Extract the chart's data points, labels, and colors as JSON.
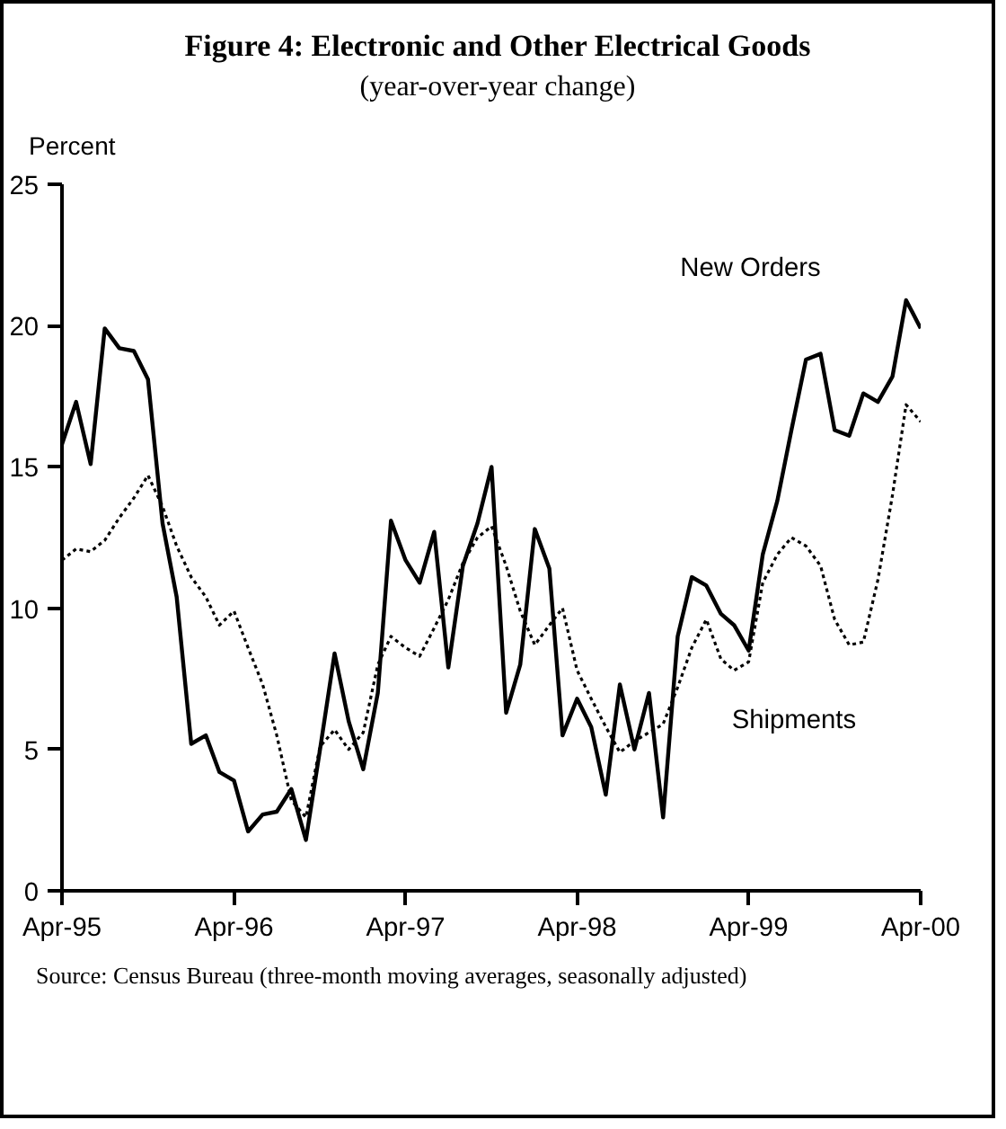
{
  "chart_data": {
    "type": "line",
    "title": "Figure 4: Electronic and Other Electrical Goods",
    "subtitle": "(year-over-year change)",
    "ylabel": "Percent",
    "x": [
      "1995-04",
      "1995-05",
      "1995-06",
      "1995-07",
      "1995-08",
      "1995-09",
      "1995-10",
      "1995-11",
      "1995-12",
      "1996-01",
      "1996-02",
      "1996-03",
      "1996-04",
      "1996-05",
      "1996-06",
      "1996-07",
      "1996-08",
      "1996-09",
      "1996-10",
      "1996-11",
      "1996-12",
      "1997-01",
      "1997-02",
      "1997-03",
      "1997-04",
      "1997-05",
      "1997-06",
      "1997-07",
      "1997-08",
      "1997-09",
      "1997-10",
      "1997-11",
      "1997-12",
      "1998-01",
      "1998-02",
      "1998-03",
      "1998-04",
      "1998-05",
      "1998-06",
      "1998-07",
      "1998-08",
      "1998-09",
      "1998-10",
      "1998-11",
      "1998-12",
      "1999-01",
      "1999-02",
      "1999-03",
      "1999-04",
      "1999-05",
      "1999-06",
      "1999-07",
      "1999-08",
      "1999-09",
      "1999-10",
      "1999-11",
      "1999-12",
      "2000-01",
      "2000-02",
      "2000-03",
      "2000-04"
    ],
    "series": [
      {
        "name": "New Orders",
        "color": "#000000",
        "line_style": "solid",
        "values": [
          15.8,
          17.3,
          15.1,
          19.9,
          19.2,
          19.1,
          18.1,
          13.0,
          10.4,
          5.2,
          5.5,
          4.2,
          3.9,
          2.1,
          2.7,
          2.8,
          3.6,
          1.8,
          5.0,
          8.4,
          6.0,
          4.3,
          7.0,
          13.1,
          11.7,
          10.9,
          12.7,
          7.9,
          11.5,
          13.0,
          15.0,
          6.3,
          8.0,
          12.8,
          11.4,
          5.5,
          6.8,
          5.8,
          3.4,
          7.3,
          5.0,
          7.0,
          2.6,
          9.0,
          11.1,
          10.8,
          9.8,
          9.4,
          8.5,
          11.9,
          13.8,
          16.3,
          18.8,
          19.0,
          16.3,
          16.1,
          17.6,
          17.3,
          18.2,
          20.9,
          19.9
        ]
      },
      {
        "name": "Shipments",
        "color": "#000000",
        "line_style": "dotted",
        "values": [
          11.7,
          12.1,
          12.0,
          12.4,
          13.2,
          13.9,
          14.7,
          13.6,
          12.2,
          11.1,
          10.4,
          9.4,
          9.9,
          8.6,
          7.3,
          5.5,
          3.2,
          2.6,
          5.1,
          5.7,
          5.0,
          5.6,
          8.0,
          9.0,
          8.6,
          8.3,
          9.3,
          10.3,
          11.6,
          12.5,
          12.9,
          11.5,
          9.9,
          8.7,
          9.4,
          10.0,
          7.8,
          6.8,
          5.8,
          4.9,
          5.3,
          5.6,
          5.9,
          7.2,
          8.6,
          9.6,
          8.2,
          7.8,
          8.1,
          10.9,
          11.9,
          12.5,
          12.2,
          11.5,
          9.6,
          8.7,
          8.8,
          11.0,
          14.0,
          17.2,
          16.6
        ]
      }
    ],
    "xlim": [
      "1995-04",
      "2000-04"
    ],
    "xticks": [
      {
        "value": "1995-04",
        "label": "Apr-95"
      },
      {
        "value": "1996-04",
        "label": "Apr-96"
      },
      {
        "value": "1997-04",
        "label": "Apr-97"
      },
      {
        "value": "1998-04",
        "label": "Apr-98"
      },
      {
        "value": "1999-04",
        "label": "Apr-99"
      },
      {
        "value": "2000-04",
        "label": "Apr-00"
      }
    ],
    "ylim": [
      0,
      25
    ],
    "yticks": [
      0,
      5,
      10,
      15,
      20,
      25
    ],
    "grid": false,
    "legend": false,
    "annotations": [
      "Source:  Census Bureau (three-month moving averages, seasonally adjusted)"
    ]
  }
}
